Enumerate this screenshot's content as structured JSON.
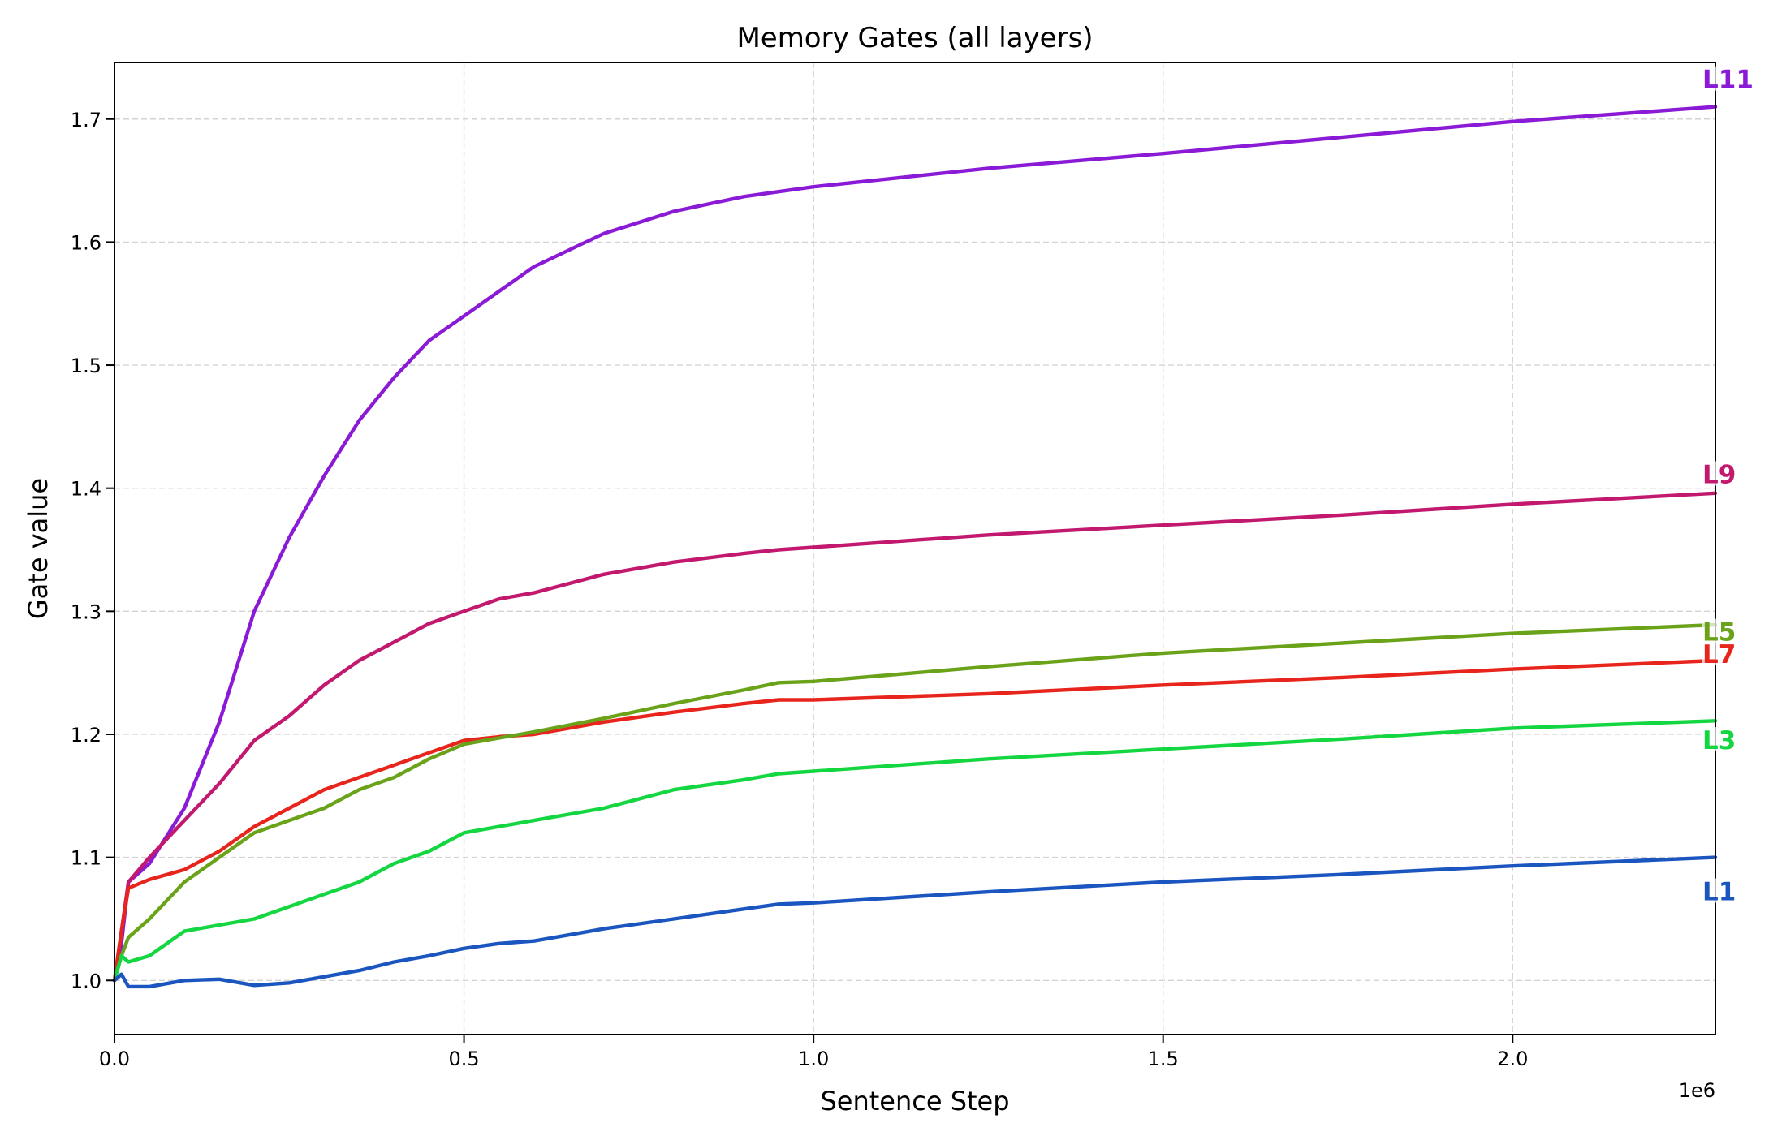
{
  "chart_data": {
    "type": "line",
    "title": "Memory Gates (all layers)",
    "xlabel": "Sentence Step",
    "ylabel": "Gate value",
    "x_offset_label": "1e6",
    "xlim": [
      0,
      2.29
    ],
    "ylim": [
      0.956,
      1.746
    ],
    "x_scale": 1000000,
    "grid": true,
    "legend_position": "inline labels at right end of each line",
    "x_ticks": [
      0.0,
      0.5,
      1.0,
      1.5,
      2.0
    ],
    "x_tick_labels": [
      "0.0",
      "0.5",
      "1.0",
      "1.5",
      "2.0"
    ],
    "y_ticks": [
      1.0,
      1.1,
      1.2,
      1.3,
      1.4,
      1.5,
      1.6,
      1.7
    ],
    "y_tick_labels": [
      "1.0",
      "1.1",
      "1.2",
      "1.3",
      "1.4",
      "1.5",
      "1.6",
      "1.7"
    ],
    "x": [
      0.0,
      0.01,
      0.02,
      0.05,
      0.1,
      0.15,
      0.2,
      0.25,
      0.3,
      0.35,
      0.4,
      0.45,
      0.5,
      0.55,
      0.6,
      0.7,
      0.8,
      0.9,
      0.95,
      1.0,
      1.25,
      1.5,
      1.75,
      2.0,
      2.29
    ],
    "series": [
      {
        "name": "L11",
        "color": "#8a1ad6",
        "values": [
          1.0,
          1.03,
          1.08,
          1.095,
          1.14,
          1.21,
          1.3,
          1.36,
          1.41,
          1.455,
          1.49,
          1.52,
          1.54,
          1.56,
          1.58,
          1.607,
          1.625,
          1.637,
          1.641,
          1.645,
          1.66,
          1.672,
          1.685,
          1.698,
          1.71
        ]
      },
      {
        "name": "L9",
        "color": "#c2186e",
        "values": [
          1.0,
          1.04,
          1.08,
          1.1,
          1.13,
          1.16,
          1.195,
          1.215,
          1.24,
          1.26,
          1.275,
          1.29,
          1.3,
          1.31,
          1.315,
          1.33,
          1.34,
          1.347,
          1.35,
          1.352,
          1.362,
          1.37,
          1.378,
          1.387,
          1.396
        ]
      },
      {
        "name": "L7",
        "color": "#e8251c",
        "values": [
          1.0,
          1.04,
          1.075,
          1.082,
          1.09,
          1.105,
          1.125,
          1.14,
          1.155,
          1.165,
          1.175,
          1.185,
          1.195,
          1.198,
          1.2,
          1.21,
          1.218,
          1.225,
          1.228,
          1.228,
          1.233,
          1.24,
          1.246,
          1.253,
          1.26
        ]
      },
      {
        "name": "L5",
        "color": "#6aa31a",
        "values": [
          1.0,
          1.02,
          1.035,
          1.05,
          1.08,
          1.1,
          1.12,
          1.13,
          1.14,
          1.155,
          1.165,
          1.18,
          1.192,
          1.197,
          1.202,
          1.213,
          1.225,
          1.236,
          1.242,
          1.243,
          1.255,
          1.266,
          1.274,
          1.282,
          1.289
        ]
      },
      {
        "name": "L3",
        "color": "#14d640",
        "values": [
          1.0,
          1.02,
          1.015,
          1.02,
          1.04,
          1.045,
          1.05,
          1.06,
          1.07,
          1.08,
          1.095,
          1.105,
          1.12,
          1.125,
          1.13,
          1.14,
          1.155,
          1.163,
          1.168,
          1.17,
          1.18,
          1.188,
          1.196,
          1.205,
          1.211
        ]
      },
      {
        "name": "L1",
        "color": "#1a55c0",
        "values": [
          1.0,
          1.005,
          0.995,
          0.995,
          1.0,
          1.001,
          0.996,
          0.998,
          1.003,
          1.008,
          1.015,
          1.02,
          1.026,
          1.03,
          1.032,
          1.042,
          1.05,
          1.058,
          1.062,
          1.063,
          1.072,
          1.08,
          1.086,
          1.093,
          1.1
        ]
      }
    ],
    "end_labels": [
      {
        "text": "L11",
        "color": "#8a1ad6",
        "y_value": 1.733
      },
      {
        "text": "L9",
        "color": "#c2186e",
        "y_value": 1.412
      },
      {
        "text": "L5",
        "color": "#6aa31a",
        "y_value": 1.284
      },
      {
        "text": "L7",
        "color": "#e8251c",
        "y_value": 1.266
      },
      {
        "text": "L3",
        "color": "#14d640",
        "y_value": 1.196
      },
      {
        "text": "L1",
        "color": "#1a55c0",
        "y_value": 1.073
      }
    ]
  }
}
